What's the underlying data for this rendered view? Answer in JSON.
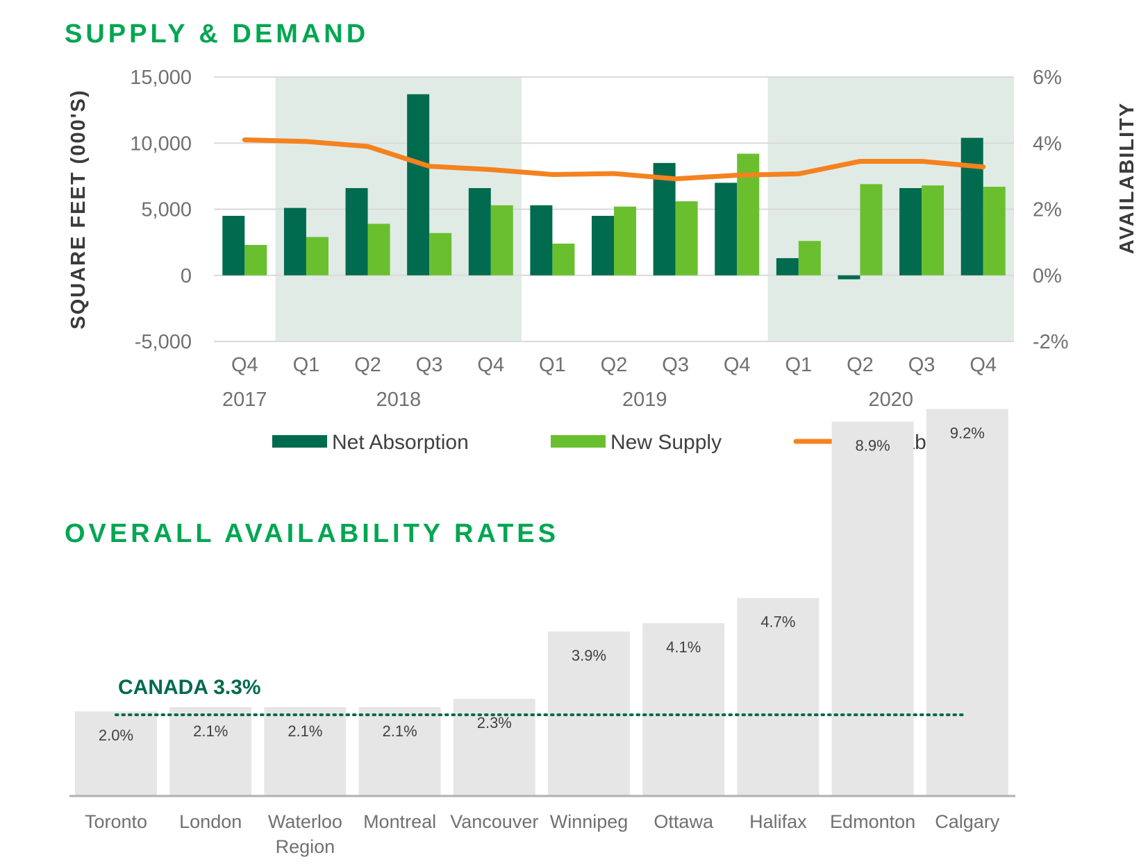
{
  "titles": {
    "supply_demand": "SUPPLY & DEMAND",
    "availability_rates": "OVERALL AVAILABILITY RATES"
  },
  "colors": {
    "title_green": "#00a651",
    "net_absorption": "#006b4e",
    "new_supply": "#6abf2f",
    "availability_line": "#f4821f",
    "shade": "#e1ebe6",
    "bar_gray": "#e6e6e6",
    "canada_line": "#006a4e"
  },
  "chart_data": [
    {
      "type": "bar",
      "title": "SUPPLY & DEMAND",
      "ylabel": "SQUARE FEET (000'S)",
      "y2label": "AVAILABILITY",
      "ylim": [
        -5000,
        15000
      ],
      "y_ticks": [
        15000,
        10000,
        5000,
        0,
        -5000
      ],
      "y_tick_labels": [
        "15,000",
        "10,000",
        "5,000",
        "0",
        "-5,000"
      ],
      "y2lim": [
        -2,
        6
      ],
      "y2_ticks": [
        6,
        4,
        2,
        0,
        -2
      ],
      "y2_tick_labels": [
        "6%",
        "4%",
        "2%",
        "0%",
        "-2%"
      ],
      "categories": [
        "Q4",
        "Q1",
        "Q2",
        "Q3",
        "Q4",
        "Q1",
        "Q2",
        "Q3",
        "Q4",
        "Q1",
        "Q2",
        "Q3",
        "Q4"
      ],
      "year_labels": [
        {
          "label": "2017",
          "start": 0,
          "end": 0
        },
        {
          "label": "2018",
          "start": 1,
          "end": 4
        },
        {
          "label": "2019",
          "start": 5,
          "end": 8
        },
        {
          "label": "2020",
          "start": 9,
          "end": 12
        }
      ],
      "shaded_ranges": [
        [
          1,
          4
        ],
        [
          9,
          12
        ]
      ],
      "series": [
        {
          "name": "Net Absorption",
          "kind": "bar",
          "axis": "left",
          "values": [
            4500,
            5100,
            6600,
            13700,
            6600,
            5300,
            4500,
            8500,
            7000,
            1300,
            -300,
            6600,
            10400
          ]
        },
        {
          "name": "New Supply",
          "kind": "bar",
          "axis": "left",
          "values": [
            2300,
            2900,
            3900,
            3200,
            5300,
            2400,
            5200,
            5600,
            9200,
            2600,
            6900,
            6800,
            6700
          ]
        },
        {
          "name": "Availability",
          "kind": "line",
          "axis": "right",
          "values": [
            4.1,
            4.05,
            3.9,
            3.3,
            3.2,
            3.05,
            3.08,
            2.92,
            3.03,
            3.07,
            3.45,
            3.45,
            3.28
          ]
        }
      ],
      "legend": [
        "Net Absorption",
        "New Supply",
        "Availability"
      ]
    },
    {
      "type": "bar",
      "title": "OVERALL AVAILABILITY RATES",
      "categories": [
        "Toronto",
        "London",
        "Waterloo Region",
        "Montreal",
        "Vancouver",
        "Winnipeg",
        "Ottawa",
        "Halifax",
        "Edmonton",
        "Calgary"
      ],
      "category_lines": [
        [
          "Toronto"
        ],
        [
          "London"
        ],
        [
          "Waterloo",
          "Region"
        ],
        [
          "Montreal"
        ],
        [
          "Vancouver"
        ],
        [
          "Winnipeg"
        ],
        [
          "Ottawa"
        ],
        [
          "Halifax"
        ],
        [
          "Edmonton"
        ],
        [
          "Calgary"
        ]
      ],
      "values": [
        2.0,
        2.1,
        2.1,
        2.1,
        2.3,
        3.9,
        4.1,
        4.7,
        8.9,
        9.2
      ],
      "value_labels": [
        "2.0%",
        "2.1%",
        "2.1%",
        "2.1%",
        "2.3%",
        "3.9%",
        "4.1%",
        "4.7%",
        "8.9%",
        "9.2%"
      ],
      "reference": {
        "label": "CANADA 3.3%",
        "value": 3.3
      }
    }
  ]
}
